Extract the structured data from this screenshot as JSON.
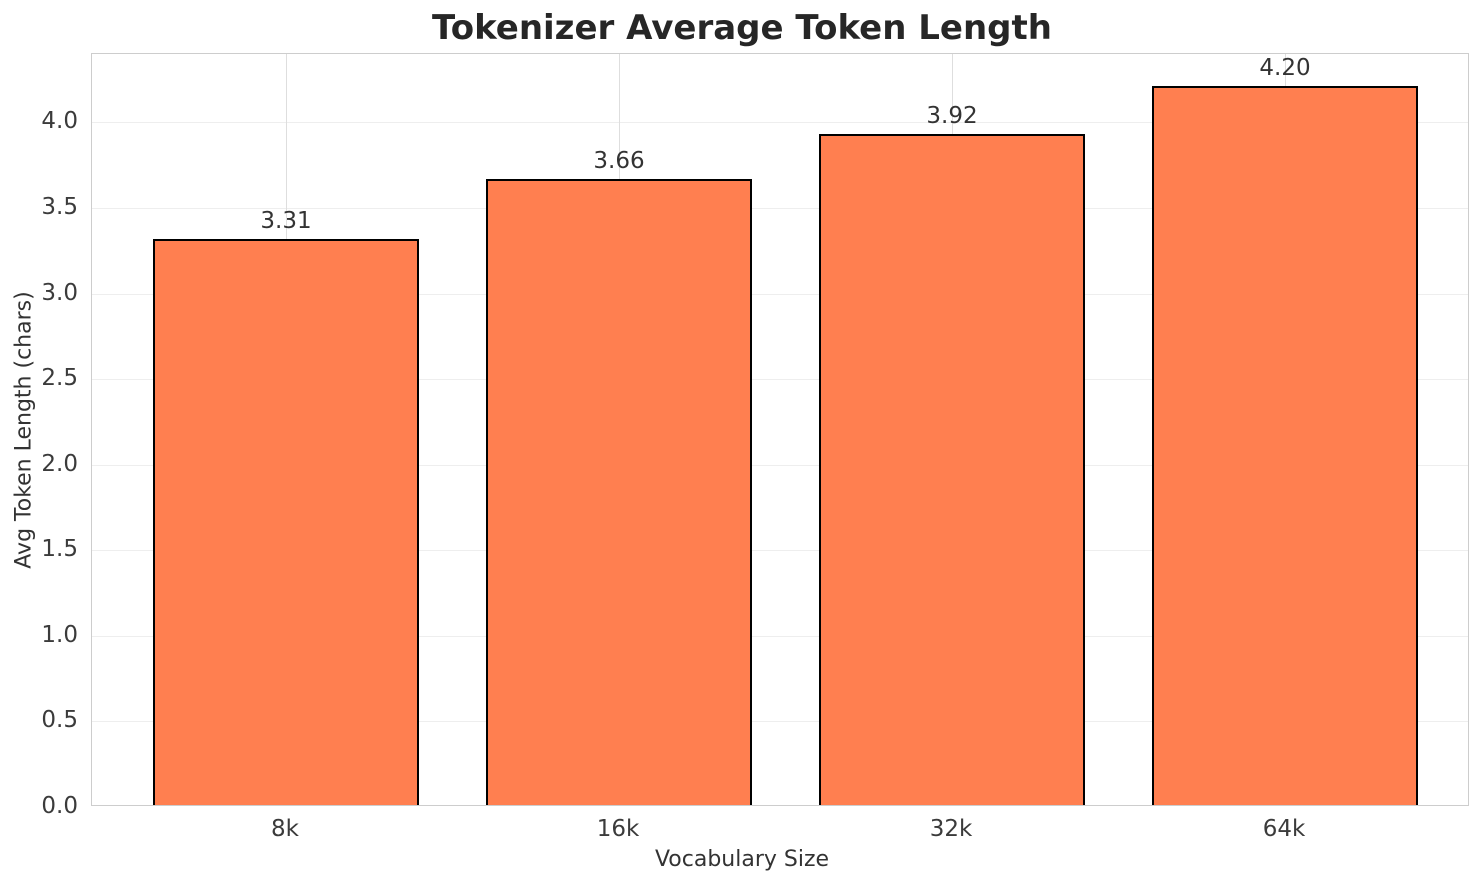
{
  "chart_data": {
    "type": "bar",
    "title": "Tokenizer Average Token Length",
    "xlabel": "Vocabulary Size",
    "ylabel": "Avg Token Length (chars)",
    "categories": [
      "8k",
      "16k",
      "32k",
      "64k"
    ],
    "values": [
      3.31,
      3.66,
      3.92,
      4.2
    ],
    "value_labels": [
      "3.31",
      "3.66",
      "3.92",
      "4.20"
    ],
    "ylim": [
      0,
      4.4
    ],
    "yticks": [
      0.0,
      0.5,
      1.0,
      1.5,
      2.0,
      2.5,
      3.0,
      3.5,
      4.0
    ],
    "ytick_labels": [
      "0.0",
      "0.5",
      "1.0",
      "1.5",
      "2.0",
      "2.5",
      "3.0",
      "3.5",
      "4.0"
    ],
    "grid": true,
    "legend_position": "none",
    "bar_color": "#FF7F50",
    "bar_edge_color": "#000000",
    "title_color": "#262626",
    "tick_label_color": "#3b3b3b"
  }
}
